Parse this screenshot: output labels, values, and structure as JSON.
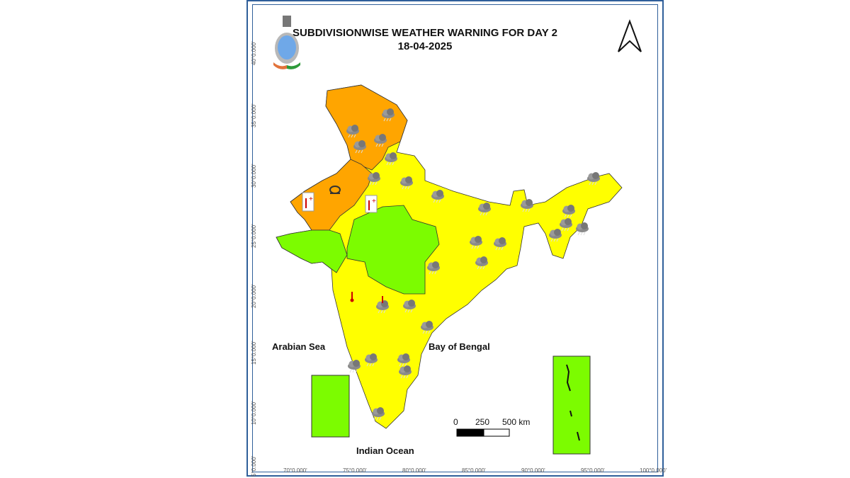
{
  "title": "SUBDIVISIONWISE WEATHER WARNING FOR DAY 2",
  "date": "18-04-2025",
  "colors": {
    "orange": "#FFA500",
    "yellow": "#FFFF00",
    "green": "#7CFC00",
    "frame": "#2f5f9a"
  },
  "latitude_labels": [
    "40°0.000'",
    "35°0.000'",
    "30°0.000'",
    "25°0.000'",
    "20°0.000'",
    "15°0.000'",
    "10°0.000'",
    "5°0.000'"
  ],
  "longitude_labels": [
    "70°0.000'",
    "75°0.000'",
    "80°0.000'",
    "85°0.000'",
    "90°0.000'",
    "95°0.000'",
    "100°0.000'"
  ],
  "sea_labels": {
    "arabian": "Arabian Sea",
    "bengal": "Bay of Bengal",
    "indian": "Indian Ocean"
  },
  "scale_bar": {
    "labels": [
      "0",
      "250",
      "500 km"
    ]
  },
  "icons": [
    "imd-logo",
    "north-arrow-icon",
    "thunderstorm-icon",
    "heatwave-thermometer-icon",
    "dust-storm-icon"
  ]
}
